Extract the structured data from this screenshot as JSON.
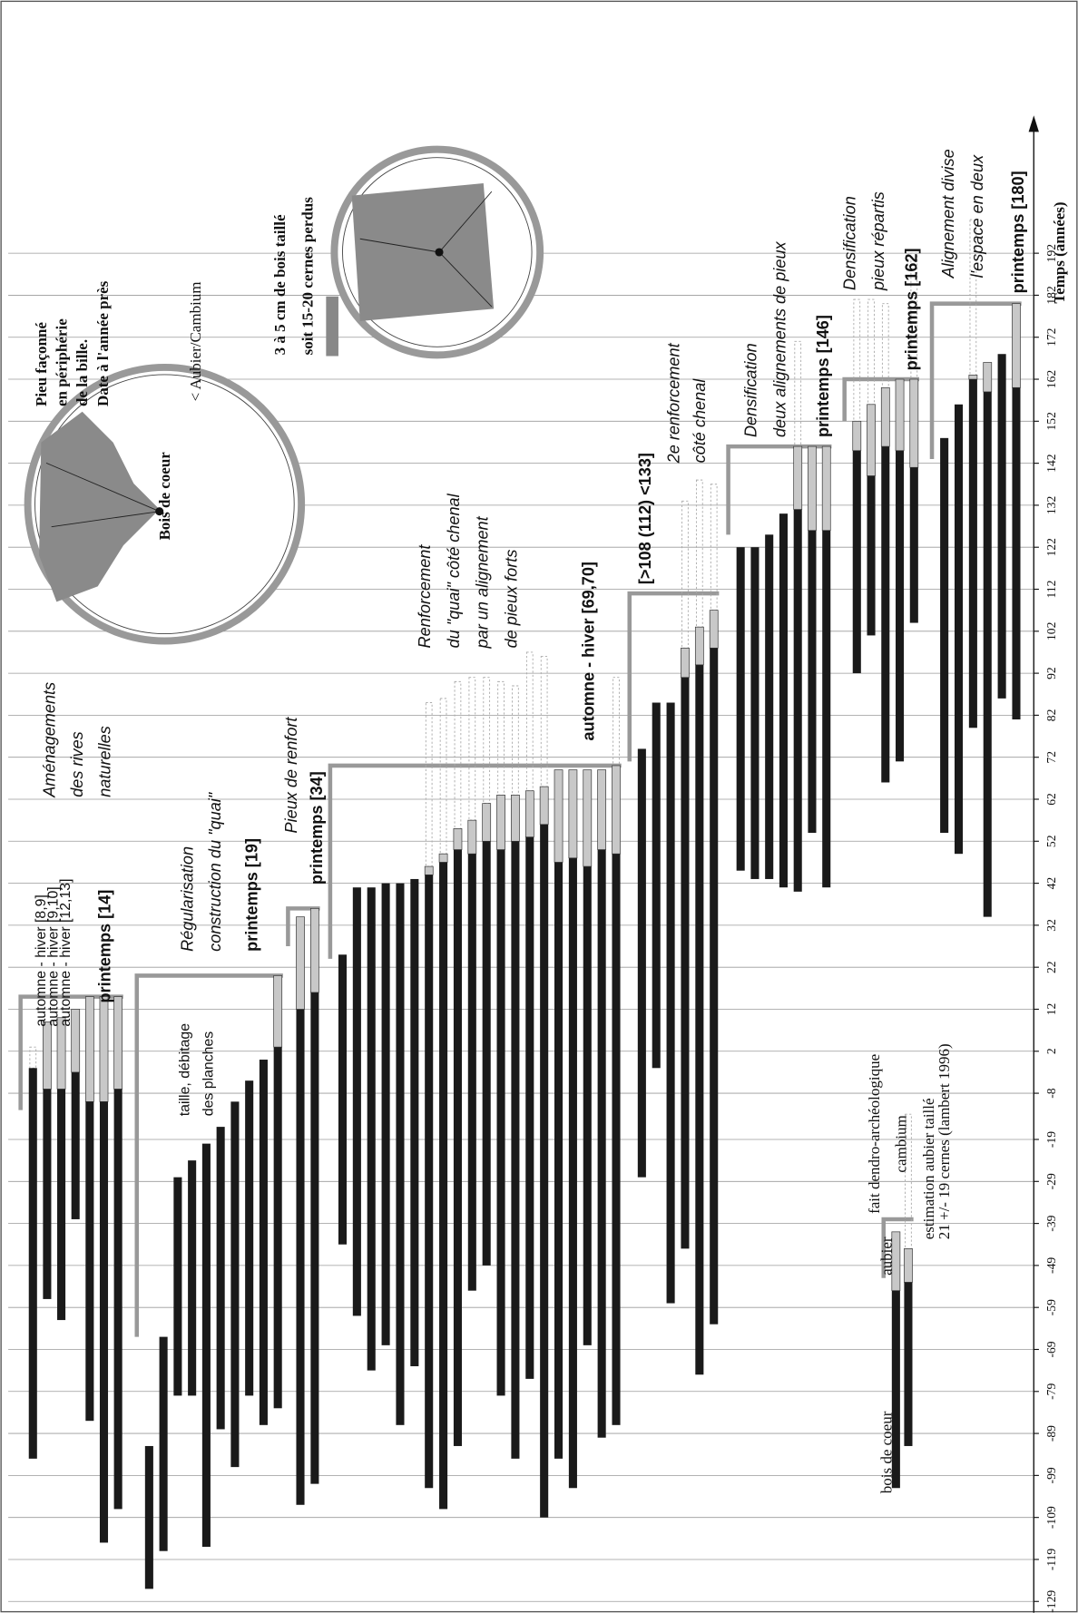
{
  "chart_data": {
    "type": "range_bar",
    "axis_label": "Temps (années)",
    "ylim": [
      -129,
      192
    ],
    "yticks": [
      -129,
      -119,
      -109,
      -99,
      -89,
      -79,
      -69,
      -59,
      -49,
      -39,
      -29,
      -19,
      -8,
      2,
      12,
      22,
      32,
      42,
      52,
      62,
      72,
      82,
      92,
      102,
      112,
      122,
      132,
      142,
      152,
      162,
      172,
      182,
      192
    ],
    "grid": true,
    "colors": {
      "heartwood": "#1a1a1a",
      "sapwood": "#c8c8c8",
      "bracket": "#999999",
      "estimate": "#aaaaaa"
    },
    "groups": [
      {
        "bracket": [
          -12,
          15
        ],
        "bars": [
          {
            "start": -95,
            "sapwood": null,
            "end": -2,
            "estimate": 3
          },
          {
            "start": -57,
            "sapwood": -7,
            "end": 9,
            "estimate": null
          },
          {
            "start": -62,
            "sapwood": -7,
            "end": 10,
            "estimate": null
          },
          {
            "start": -38,
            "sapwood": -3,
            "end": 12,
            "estimate": null
          },
          {
            "start": -86,
            "sapwood": -10,
            "end": 15,
            "estimate": null
          },
          {
            "start": -115,
            "sapwood": -10,
            "end": 15,
            "estimate": null
          },
          {
            "start": -107,
            "sapwood": -7,
            "end": 15,
            "estimate": null
          }
        ]
      },
      {
        "bracket": [
          -66,
          20
        ],
        "bars": [
          {
            "start": -126,
            "sapwood": null,
            "end": -92,
            "estimate": null
          },
          {
            "start": -117,
            "sapwood": null,
            "end": -66,
            "estimate": null
          },
          {
            "start": -80,
            "sapwood": null,
            "end": -28,
            "estimate": null
          },
          {
            "start": -80,
            "sapwood": null,
            "end": -24,
            "estimate": null
          },
          {
            "start": -116,
            "sapwood": null,
            "end": -20,
            "estimate": null
          },
          {
            "start": -88,
            "sapwood": null,
            "end": -16,
            "estimate": null
          },
          {
            "start": -97,
            "sapwood": null,
            "end": -10,
            "estimate": null
          },
          {
            "start": -80,
            "sapwood": null,
            "end": -5,
            "estimate": null
          },
          {
            "start": -87,
            "sapwood": null,
            "end": 0,
            "estimate": null
          },
          {
            "start": -83,
            "sapwood": 3,
            "end": 20,
            "estimate": null
          }
        ]
      },
      {
        "bracket": [
          27,
          36
        ],
        "bars": [
          {
            "start": -106,
            "sapwood": 12,
            "end": 34,
            "estimate": null
          },
          {
            "start": -101,
            "sapwood": 16,
            "end": 36,
            "estimate": null
          }
        ]
      },
      {
        "bracket": [
          24,
          70
        ],
        "bars": [
          {
            "start": -44,
            "sapwood": null,
            "end": 25,
            "estimate": null
          },
          {
            "start": -61,
            "sapwood": null,
            "end": 41,
            "estimate": null
          },
          {
            "start": -74,
            "sapwood": null,
            "end": 41,
            "estimate": null
          },
          {
            "start": -68,
            "sapwood": null,
            "end": 42,
            "estimate": null
          },
          {
            "start": -87,
            "sapwood": null,
            "end": 42,
            "estimate": null
          },
          {
            "start": -73,
            "sapwood": null,
            "end": 43,
            "estimate": null
          },
          {
            "start": -102,
            "sapwood": 44,
            "end": 46,
            "estimate": 85
          },
          {
            "start": -107,
            "sapwood": 47,
            "end": 49,
            "estimate": 86
          },
          {
            "start": -92,
            "sapwood": 50,
            "end": 55,
            "estimate": 90
          },
          {
            "start": -55,
            "sapwood": 49,
            "end": 57,
            "estimate": 91
          },
          {
            "start": -49,
            "sapwood": 52,
            "end": 61,
            "estimate": 91
          },
          {
            "start": -80,
            "sapwood": 50,
            "end": 63,
            "estimate": 90
          },
          {
            "start": -95,
            "sapwood": 52,
            "end": 63,
            "estimate": 89
          },
          {
            "start": -76,
            "sapwood": 53,
            "end": 64,
            "estimate": 97
          },
          {
            "start": -109,
            "sapwood": 56,
            "end": 65,
            "estimate": 96
          },
          {
            "start": -95,
            "sapwood": 47,
            "end": 69,
            "estimate": null
          },
          {
            "start": -102,
            "sapwood": 48,
            "end": 69,
            "estimate": null
          },
          {
            "start": -68,
            "sapwood": 46,
            "end": 69,
            "estimate": null
          },
          {
            "start": -90,
            "sapwood": 50,
            "end": 69,
            "estimate": null
          },
          {
            "start": -87,
            "sapwood": 49,
            "end": 70,
            "estimate": 91
          }
        ]
      },
      {
        "bracket": [
          71,
          111
        ],
        "bars": [
          {
            "start": -28,
            "sapwood": null,
            "end": 74,
            "estimate": null
          },
          {
            "start": -2,
            "sapwood": null,
            "end": 85,
            "estimate": null
          },
          {
            "start": -58,
            "sapwood": null,
            "end": 85,
            "estimate": null
          },
          {
            "start": -45,
            "sapwood": 91,
            "end": 98,
            "estimate": 133
          },
          {
            "start": -75,
            "sapwood": 94,
            "end": 103,
            "estimate": 138
          },
          {
            "start": -63,
            "sapwood": 98,
            "end": 107,
            "estimate": 137
          }
        ]
      },
      {
        "bracket": [
          125,
          146
        ],
        "bars": [
          {
            "start": 45,
            "sapwood": null,
            "end": 122,
            "estimate": null
          },
          {
            "start": 43,
            "sapwood": null,
            "end": 122,
            "estimate": null
          },
          {
            "start": 43,
            "sapwood": null,
            "end": 125,
            "estimate": null
          },
          {
            "start": 41,
            "sapwood": null,
            "end": 130,
            "estimate": null
          },
          {
            "start": 40,
            "sapwood": 131,
            "end": 146,
            "estimate": 171
          },
          {
            "start": 54,
            "sapwood": 126,
            "end": 146,
            "estimate": null
          },
          {
            "start": 41,
            "sapwood": 126,
            "end": 146,
            "estimate": null
          }
        ]
      },
      {
        "bracket": [
          152,
          162
        ],
        "bars": [
          {
            "start": 92,
            "sapwood": 145,
            "end": 152,
            "estimate": 181
          },
          {
            "start": 101,
            "sapwood": 139,
            "end": 156,
            "estimate": 181
          },
          {
            "start": 66,
            "sapwood": 146,
            "end": 160,
            "estimate": 180
          },
          {
            "start": 71,
            "sapwood": 145,
            "end": 162,
            "estimate": null
          },
          {
            "start": 104,
            "sapwood": 141,
            "end": 162,
            "estimate": 192
          }
        ]
      },
      {
        "bracket": [
          143,
          180
        ],
        "bars": [
          {
            "start": 54,
            "sapwood": null,
            "end": 148,
            "estimate": null
          },
          {
            "start": 49,
            "sapwood": null,
            "end": 156,
            "estimate": null
          },
          {
            "start": 79,
            "sapwood": 162,
            "end": 163,
            "estimate": 200
          },
          {
            "start": 34,
            "sapwood": 159,
            "end": 166,
            "estimate": null
          },
          {
            "start": 86,
            "sapwood": null,
            "end": 168,
            "estimate": null
          },
          {
            "start": 81,
            "sapwood": 160,
            "end": 180,
            "estimate": null
          }
        ]
      },
      {
        "bracket": [
          -52,
          -38
        ],
        "bars": [
          {
            "start": -102,
            "sapwood": -55,
            "end": -41,
            "estimate": null
          },
          {
            "start": -92,
            "sapwood": -53,
            "end": -45,
            "estimate": -13
          }
        ]
      }
    ],
    "annotations": [
      {
        "lines": [
          "automne - hiver [8,9]",
          "automne - hiver [9,10]",
          "automne - hiver [12,13]"
        ]
      },
      {
        "lines": [
          "printemps [14]"
        ]
      },
      {
        "lines": [
          "Aménagements",
          "des rives",
          "naturelles"
        ]
      },
      {
        "lines": [
          "Régularisation",
          "construction du \"quai\""
        ]
      },
      {
        "lines": [
          "printemps [19]"
        ]
      },
      {
        "lines": [
          "taille, débitage",
          "des planches"
        ]
      },
      {
        "lines": [
          "Pieux de renfort"
        ]
      },
      {
        "lines": [
          "printemps [34]"
        ]
      },
      {
        "lines": [
          "Renforcement",
          "du \"quai\" côté chenal",
          "par un alignement",
          "de pieux forts"
        ]
      },
      {
        "lines": [
          "automne - hiver [69,70]"
        ]
      },
      {
        "lines": [
          "[>108 (112) <133]"
        ]
      },
      {
        "lines": [
          "2e renforcement",
          "côté chenal"
        ]
      },
      {
        "lines": [
          "Densification",
          "deux alignements de pieux"
        ]
      },
      {
        "lines": [
          "printemps [146]"
        ]
      },
      {
        "lines": [
          "Densification",
          "pieux répartis"
        ]
      },
      {
        "lines": [
          "printemps [162]"
        ]
      },
      {
        "lines": [
          "Alignement divise",
          "l'espace en deux"
        ]
      },
      {
        "lines": [
          "printemps [180]"
        ]
      },
      {
        "lines": [
          "Pieu façonné",
          "en périphérie",
          "de la bille.",
          "Date à l'année près"
        ]
      },
      {
        "lines": [
          "< Aubier/Cambium"
        ]
      },
      {
        "lines": [
          "Bois de coeur"
        ]
      },
      {
        "lines": [
          "3 à 5 cm de bois taillé",
          "soit 15-20 cernes perdus"
        ]
      },
      {
        "lines": [
          "bois de coeur"
        ]
      },
      {
        "lines": [
          "aubier"
        ]
      },
      {
        "lines": [
          "fait dendro-archéologique"
        ]
      },
      {
        "lines": [
          "cambium"
        ]
      },
      {
        "lines": [
          "estimation aubier taillé",
          "21 +/- 19 cernes (lambert 1996)"
        ]
      }
    ]
  }
}
